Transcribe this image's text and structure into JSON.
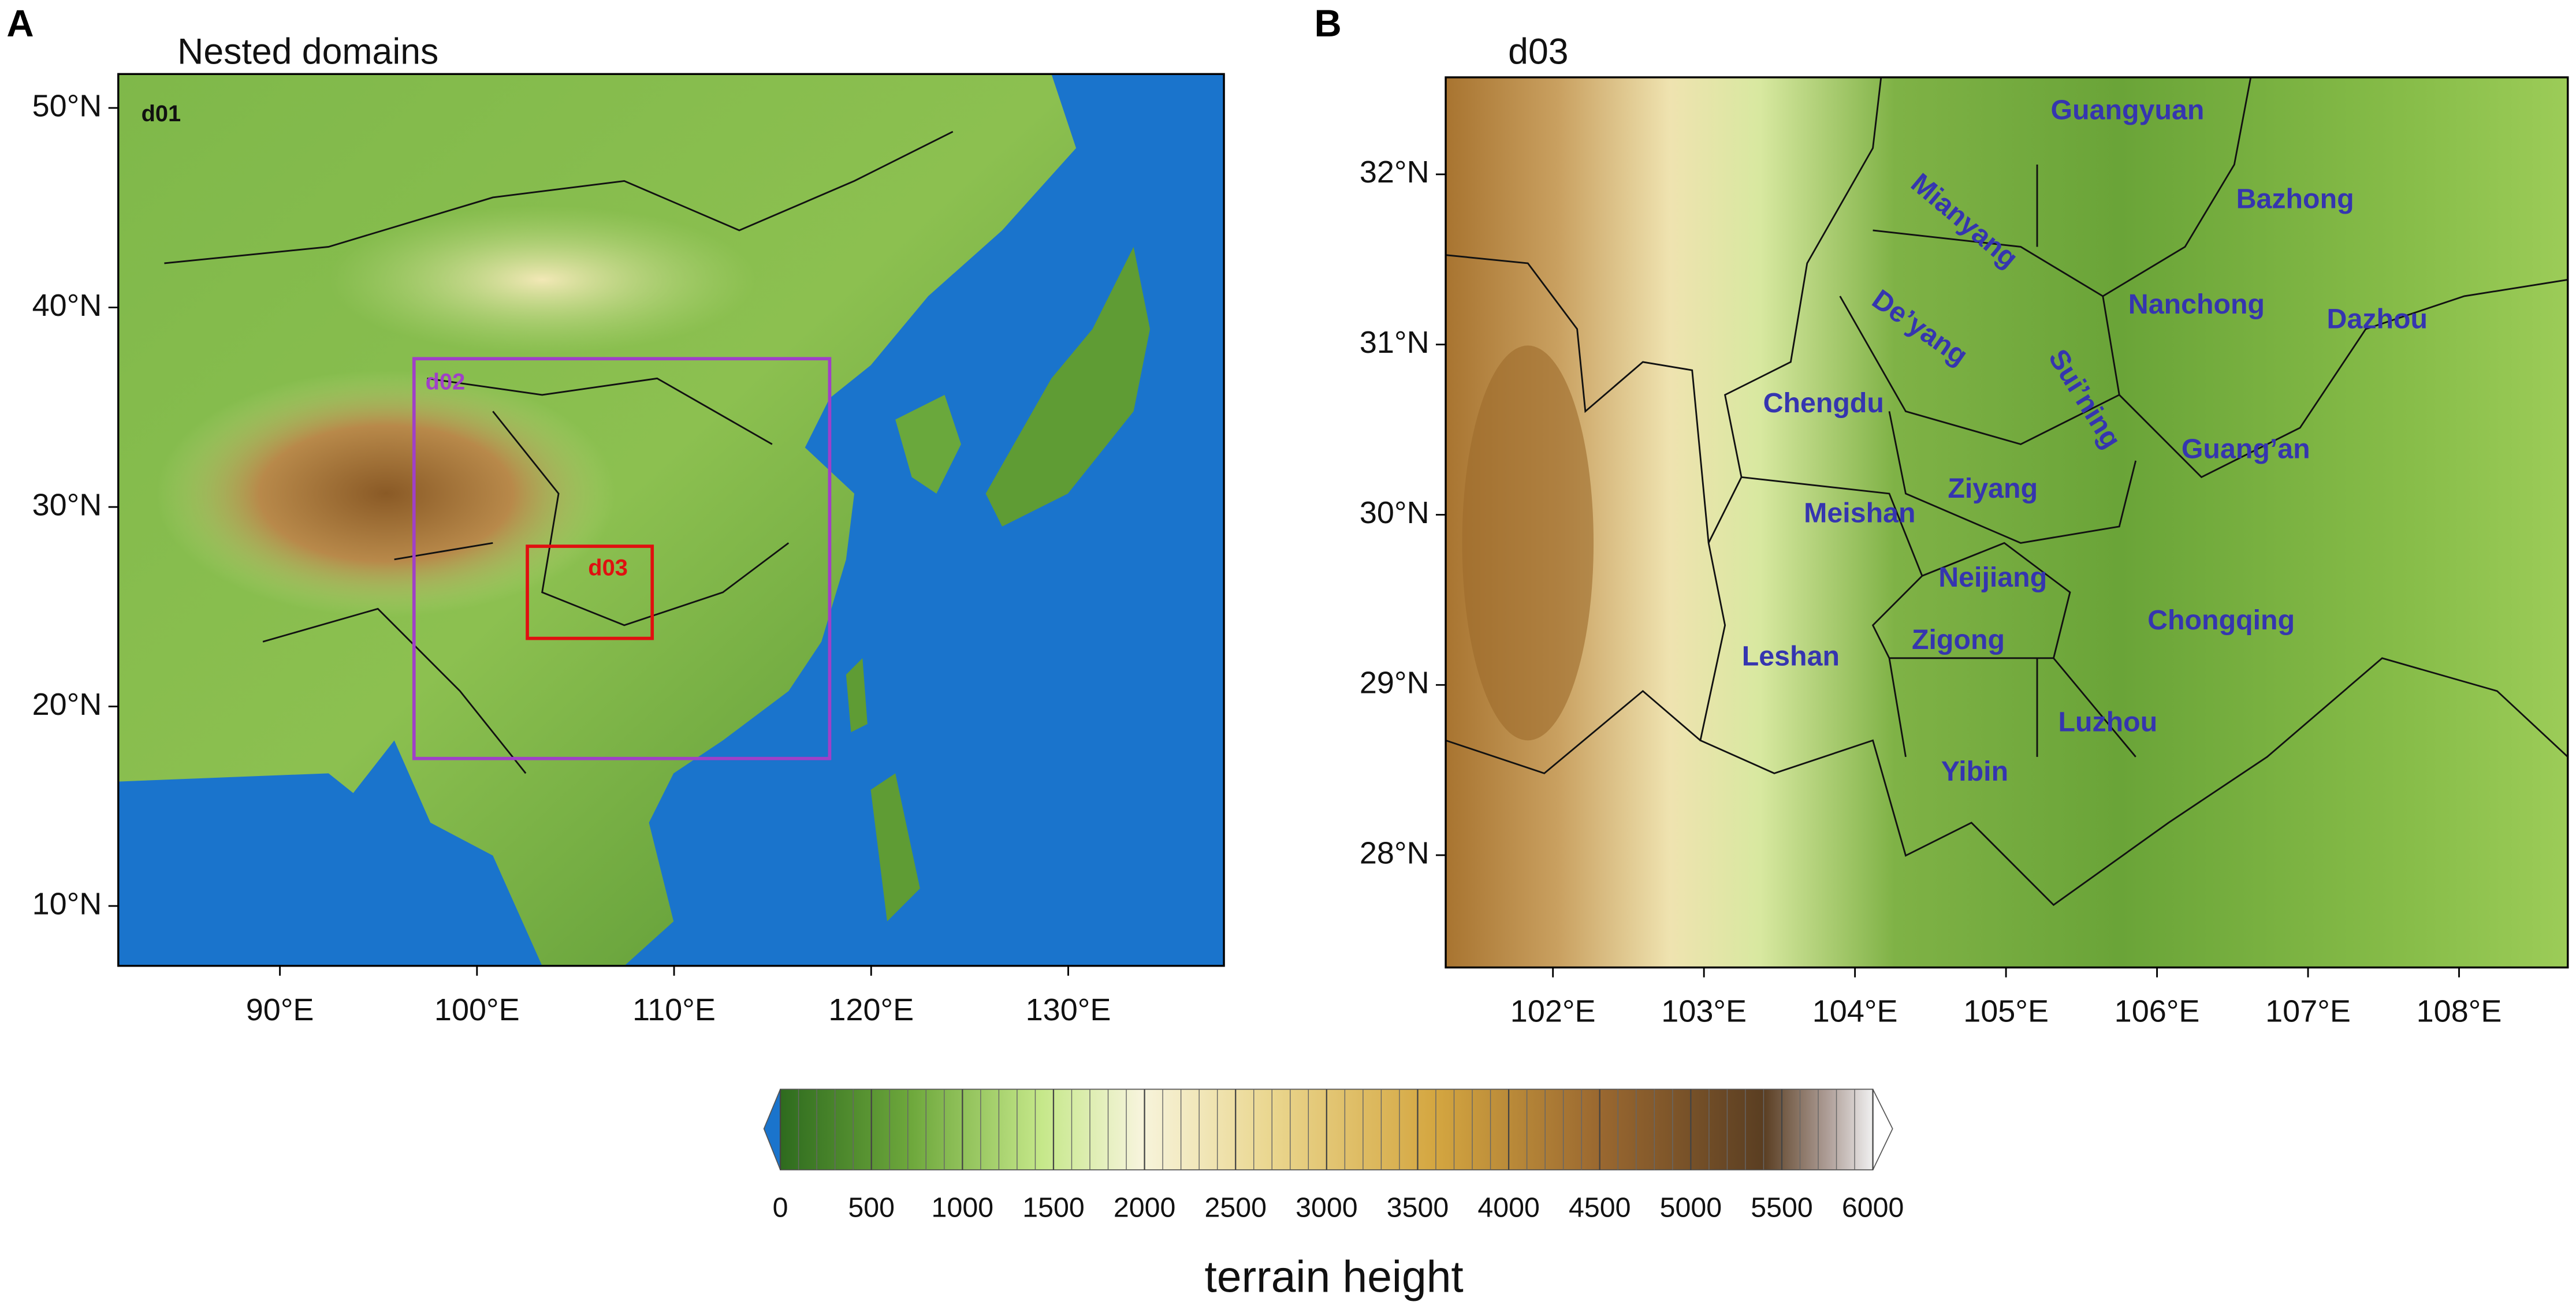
{
  "panels": [
    {
      "letter": "A",
      "title": "Nested domains",
      "domain_labels": [
        "d01",
        "d02",
        "d03"
      ],
      "lonlim": [
        81.8,
        137.9
      ],
      "latlim": [
        7.0,
        51.7
      ],
      "lat_ticks": [
        {
          "value": 10,
          "label": "10°N"
        },
        {
          "value": 20,
          "label": "20°N"
        },
        {
          "value": 30,
          "label": "30°N"
        },
        {
          "value": 40,
          "label": "40°N"
        },
        {
          "value": 50,
          "label": "50°N"
        }
      ],
      "lon_ticks": [
        {
          "value": 90,
          "label": "90°E"
        },
        {
          "value": 100,
          "label": "100°E"
        },
        {
          "value": 110,
          "label": "110°E"
        },
        {
          "value": 120,
          "label": "120°E"
        },
        {
          "value": 130,
          "label": "130°E"
        }
      ]
    },
    {
      "letter": "B",
      "title": "d03",
      "lonlim": [
        101.29,
        108.72
      ],
      "latlim": [
        27.34,
        32.57
      ],
      "lat_ticks": [
        {
          "value": 28,
          "label": "28°N"
        },
        {
          "value": 29,
          "label": "29°N"
        },
        {
          "value": 30,
          "label": "30°N"
        },
        {
          "value": 31,
          "label": "31°N"
        },
        {
          "value": 32,
          "label": "32°N"
        }
      ],
      "lon_ticks": [
        {
          "value": 102,
          "label": "102°E"
        },
        {
          "value": 103,
          "label": "103°E"
        },
        {
          "value": 104,
          "label": "104°E"
        },
        {
          "value": 105,
          "label": "105°E"
        },
        {
          "value": 106,
          "label": "106°E"
        },
        {
          "value": 107,
          "label": "107°E"
        },
        {
          "value": 108,
          "label": "108°E"
        }
      ],
      "city_labels": [
        "Guangyuan",
        "Mianyang",
        "Bazhong",
        "Nanchong",
        "Dazhou",
        "De’yang",
        "Sui’ning",
        "Chengdu",
        "Guang’an",
        "Ziyang",
        "Meishan",
        "Neijiang",
        "Chongqing",
        "Zigong",
        "Leshan",
        "Luzhou",
        "Yibin"
      ]
    }
  ],
  "colorbar": {
    "ticks": [
      0,
      500,
      1000,
      1500,
      2000,
      2500,
      3000,
      3500,
      4000,
      4500,
      5000,
      5500,
      6000
    ],
    "label": "terrain height"
  }
}
